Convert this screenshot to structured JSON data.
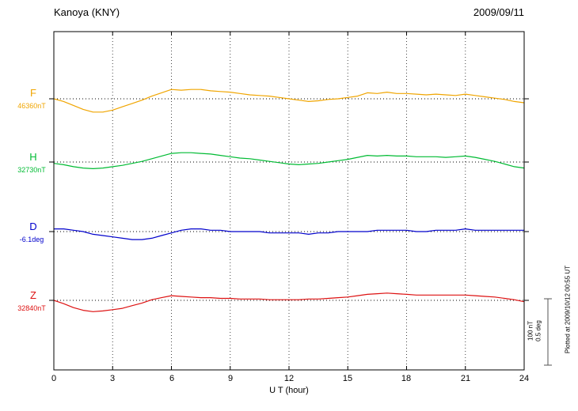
{
  "header": {
    "station_title": "Kanoya (KNY)",
    "date": "2009/09/11"
  },
  "axis": {
    "label": "U T (hour)",
    "ticks": [
      "0",
      "3",
      "6",
      "9",
      "12",
      "15",
      "18",
      "21",
      "24"
    ]
  },
  "side_labels": {
    "F": "46360nT",
    "H": "32730nT",
    "D": "-6.1deg",
    "Z": "32840nT"
  },
  "scale_bar_labels": {
    "nT": "100 nT",
    "deg": "0.5 deg"
  },
  "plotted_note": "Plotted at 2009/10/12 00:55 UT",
  "colors": {
    "F": "#f0a500",
    "H": "#00bb33",
    "D": "#0000cc",
    "Z": "#dd1111",
    "grid": "#444444",
    "frame": "#000000"
  },
  "chart_data": {
    "type": "line",
    "title": "Kanoya (KNY) magnetogram 2009/09/11",
    "xlabel": "U T (hour)",
    "x_unit": "hour",
    "x_start": 0,
    "x_end": 24,
    "x_step": 0.5,
    "x_ticks": [
      0,
      3,
      6,
      9,
      12,
      15,
      18,
      21,
      24
    ],
    "grid": "vertical-dotted",
    "scale_bar": {
      "nT_per_bar": 100,
      "deg_per_bar": 0.5
    },
    "series": [
      {
        "name": "F",
        "unit": "nT",
        "baseline": 46360,
        "baseline_label": "46360nT",
        "color": "#f0a500",
        "values": [
          46360,
          46356,
          46350,
          46344,
          46340,
          46340,
          46343,
          46348,
          46353,
          46358,
          46364,
          46369,
          46374,
          46373,
          46374,
          46374,
          46372,
          46371,
          46370,
          46368,
          46366,
          46365,
          46364,
          46362,
          46360,
          46358,
          46356,
          46357,
          46359,
          46360,
          46362,
          46364,
          46369,
          46368,
          46370,
          46368,
          46368,
          46367,
          46366,
          46367,
          46366,
          46365,
          46367,
          46365,
          46363,
          46361,
          46359,
          46356,
          46354
        ]
      },
      {
        "name": "H",
        "unit": "nT",
        "baseline": 32730,
        "baseline_label": "32730nT",
        "color": "#00bb33",
        "values": [
          32728,
          32726,
          32723,
          32721,
          32720,
          32721,
          32723,
          32725,
          32728,
          32731,
          32735,
          32739,
          32743,
          32744,
          32744,
          32743,
          32742,
          32740,
          32738,
          32736,
          32735,
          32733,
          32731,
          32729,
          32727,
          32726,
          32727,
          32728,
          32730,
          32732,
          32734,
          32737,
          32740,
          32739,
          32740,
          32739,
          32739,
          32738,
          32738,
          32738,
          32737,
          32738,
          32739,
          32737,
          32734,
          32731,
          32727,
          32723,
          32721
        ]
      },
      {
        "name": "D",
        "unit": "deg",
        "baseline": -6.1,
        "baseline_label": "-6.1deg",
        "color": "#0000cc",
        "values": [
          -6.08,
          -6.08,
          -6.09,
          -6.1,
          -6.12,
          -6.13,
          -6.14,
          -6.15,
          -6.16,
          -6.16,
          -6.15,
          -6.13,
          -6.11,
          -6.09,
          -6.08,
          -6.08,
          -6.09,
          -6.09,
          -6.1,
          -6.1,
          -6.1,
          -6.1,
          -6.11,
          -6.11,
          -6.11,
          -6.11,
          -6.12,
          -6.11,
          -6.11,
          -6.1,
          -6.1,
          -6.1,
          -6.1,
          -6.09,
          -6.09,
          -6.09,
          -6.09,
          -6.1,
          -6.1,
          -6.09,
          -6.09,
          -6.09,
          -6.08,
          -6.09,
          -6.09,
          -6.09,
          -6.09,
          -6.09,
          -6.09
        ]
      },
      {
        "name": "Z",
        "unit": "nT",
        "baseline": 32840,
        "baseline_label": "32840nT",
        "color": "#dd1111",
        "values": [
          32840,
          32835,
          32829,
          32825,
          32823,
          32824,
          32826,
          32828,
          32832,
          32836,
          32841,
          32844,
          32847,
          32846,
          32845,
          32844,
          32844,
          32843,
          32843,
          32842,
          32842,
          32842,
          32841,
          32841,
          32841,
          32841,
          32842,
          32842,
          32843,
          32844,
          32845,
          32847,
          32849,
          32850,
          32851,
          32850,
          32849,
          32848,
          32848,
          32848,
          32848,
          32848,
          32848,
          32847,
          32846,
          32845,
          32843,
          32841,
          32838
        ]
      }
    ]
  }
}
